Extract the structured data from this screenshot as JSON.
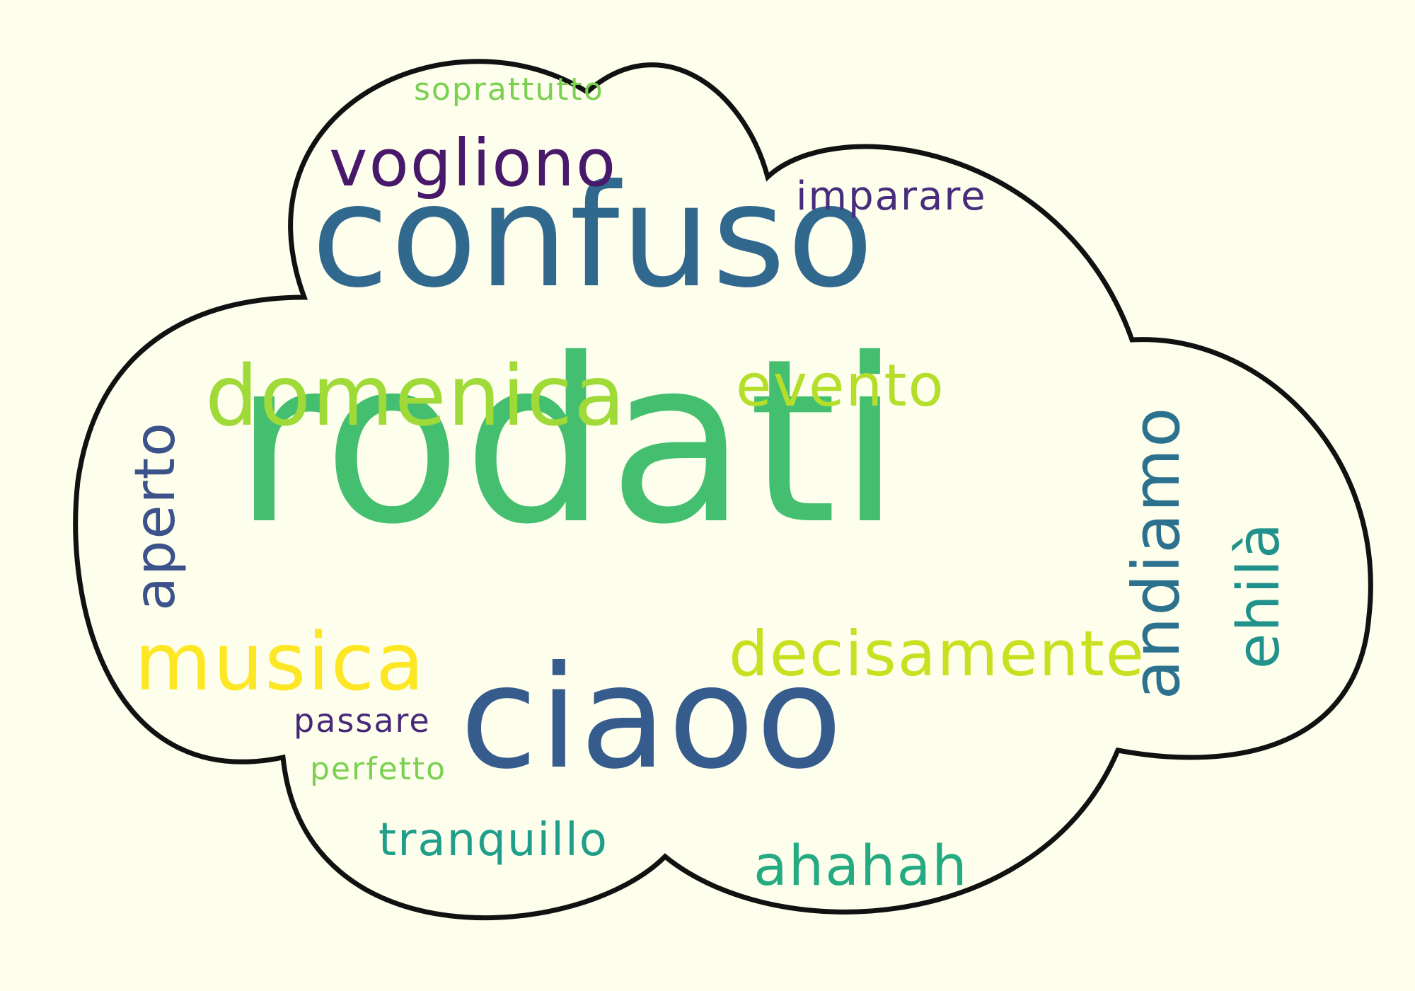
{
  "colors": {
    "background": "#fefeec",
    "outline": "#111111"
  },
  "words": [
    {
      "id": "rodati",
      "text": "rodati",
      "color": "#44bf70",
      "rotate": 0
    },
    {
      "id": "confuso",
      "text": "confuso",
      "color": "#31688e",
      "rotate": 0
    },
    {
      "id": "ciaoo",
      "text": "ciaoo",
      "color": "#365c8d",
      "rotate": 0
    },
    {
      "id": "domenica",
      "text": "domenica",
      "color": "#a0da39",
      "rotate": 0
    },
    {
      "id": "musica",
      "text": "musica",
      "color": "#fde725",
      "rotate": 0
    },
    {
      "id": "decisamente",
      "text": "decisamente",
      "color": "#c8e020",
      "rotate": 0
    },
    {
      "id": "evento",
      "text": "evento",
      "color": "#b5de2b",
      "rotate": 0
    },
    {
      "id": "vogliono",
      "text": "vogliono",
      "color": "#48186a",
      "rotate": 0
    },
    {
      "id": "imparare",
      "text": "imparare",
      "color": "#472d7b",
      "rotate": 0
    },
    {
      "id": "soprattutto",
      "text": "soprattutto",
      "color": "#7ad151",
      "rotate": 0
    },
    {
      "id": "aperto",
      "text": "aperto",
      "color": "#3b528b",
      "rotate": -90
    },
    {
      "id": "andiamo",
      "text": "andiamo",
      "color": "#2c728e",
      "rotate": -90
    },
    {
      "id": "ehila",
      "text": "ehilà",
      "color": "#21918c",
      "rotate": -90
    },
    {
      "id": "passare",
      "text": "passare",
      "color": "#482878",
      "rotate": 0
    },
    {
      "id": "perfetto",
      "text": "perfetto",
      "color": "#7ad151",
      "rotate": 0
    },
    {
      "id": "tranquillo",
      "text": "tranquillo",
      "color": "#1f9e89",
      "rotate": 0
    },
    {
      "id": "ahahah",
      "text": "ahahah",
      "color": "#25ab82",
      "rotate": 0
    }
  ]
}
